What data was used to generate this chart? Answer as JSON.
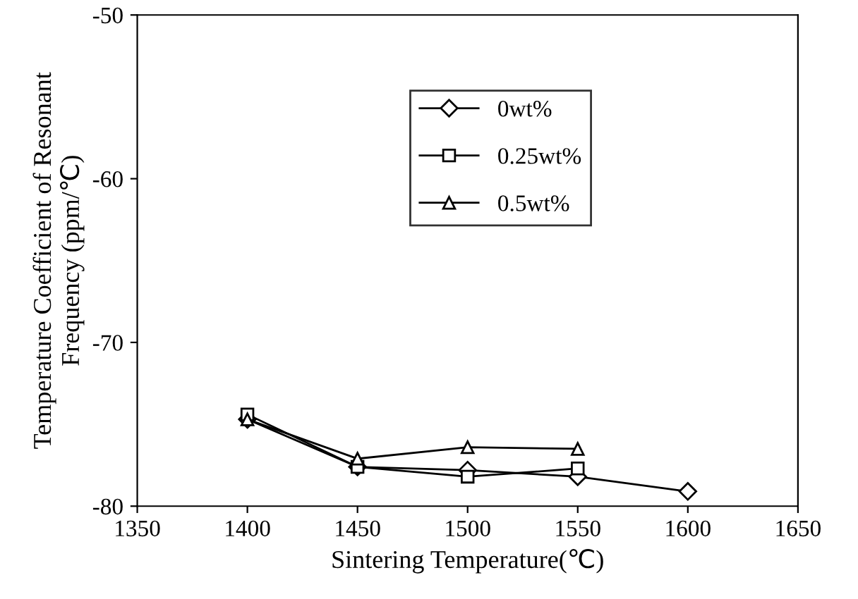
{
  "chart_data": {
    "type": "line",
    "xlabel": "Sintering Temperature(℃)",
    "ylabel": "Temperature Coefficient of Resonant\nFrequency (ppm/℃)",
    "xlim": [
      1350,
      1650
    ],
    "xticks": [
      1350,
      1400,
      1450,
      1500,
      1550,
      1600,
      1650
    ],
    "ylim": [
      -80,
      -50
    ],
    "yticks": [
      -80,
      -70,
      -60,
      -50
    ],
    "grid": false,
    "legend": "top",
    "line_style": "solid",
    "series": [
      {
        "name": "0wt%",
        "color": "#000000",
        "marker": "diamond",
        "x": [
          1400,
          1450,
          1500,
          1550,
          1600
        ],
        "values": [
          -74.7,
          -77.6,
          -77.8,
          -78.2,
          -79.1
        ]
      },
      {
        "name": "0.25wt%",
        "color": "#000000",
        "marker": "square",
        "x": [
          1400,
          1450,
          1500,
          1550
        ],
        "values": [
          -74.4,
          -77.6,
          -78.2,
          -77.7
        ]
      },
      {
        "name": "0.5wt%",
        "color": "#000000",
        "marker": "triangle",
        "x": [
          1400,
          1450,
          1500,
          1550
        ],
        "values": [
          -74.7,
          -77.1,
          -76.4,
          -76.5
        ]
      }
    ]
  }
}
